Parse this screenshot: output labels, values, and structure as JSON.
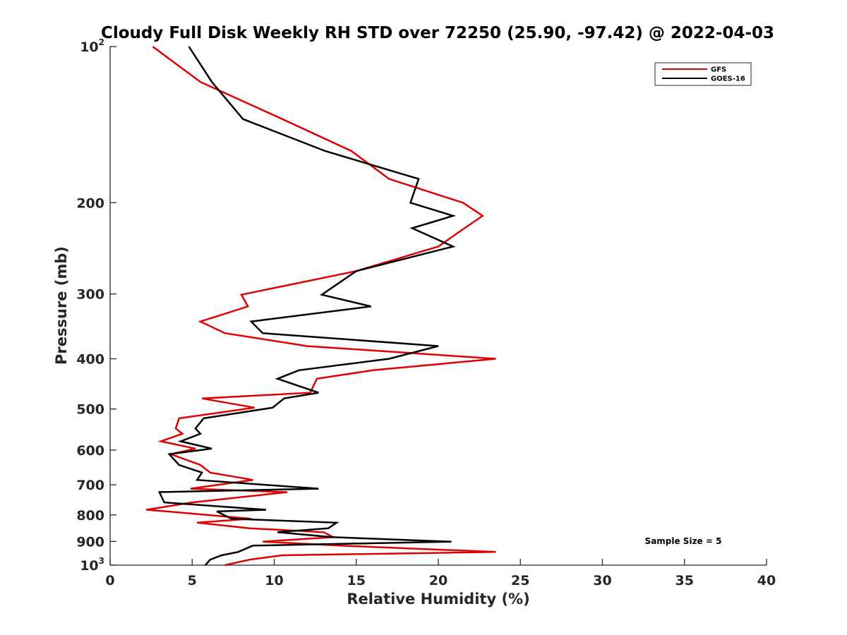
{
  "chart_data": {
    "type": "line",
    "title": "Cloudy Full Disk Weekly RH STD over 72250 (25.90, -97.42) @ 2022-04-03",
    "xlabel": "Relative Humidity (%)",
    "ylabel": "Pressure (mb)",
    "xlim": [
      0,
      40
    ],
    "ylim": [
      100,
      1000
    ],
    "y_scale": "log",
    "y_reversed": true,
    "grid": false,
    "x_ticks": [
      0,
      5,
      10,
      15,
      20,
      25,
      30,
      35,
      40
    ],
    "x_tick_labels": [
      "0",
      "5",
      "10",
      "15",
      "20",
      "25",
      "30",
      "35",
      "40"
    ],
    "y_ticks": [
      100,
      200,
      300,
      400,
      500,
      600,
      700,
      800,
      900,
      1000
    ],
    "y_tick_labels": [
      "10^2",
      "200",
      "300",
      "400",
      "500",
      "600",
      "700",
      "800",
      "900",
      "10^3"
    ],
    "legend_position": "top-right",
    "annotation": "Sample Size = 5",
    "series": [
      {
        "name": "GFS",
        "color": "#e00000",
        "points": [
          [
            2.6,
            100
          ],
          [
            5.5,
            117
          ],
          [
            10.5,
            138
          ],
          [
            14.7,
            159
          ],
          [
            17.0,
            180
          ],
          [
            21.5,
            200
          ],
          [
            22.7,
            212
          ],
          [
            21.6,
            224
          ],
          [
            20.0,
            243
          ],
          [
            15.0,
            271
          ],
          [
            8.0,
            301
          ],
          [
            8.4,
            317
          ],
          [
            5.5,
            339
          ],
          [
            7.0,
            357
          ],
          [
            12.0,
            378
          ],
          [
            23.5,
            400
          ],
          [
            16.0,
            421
          ],
          [
            12.6,
            437
          ],
          [
            12.2,
            465
          ],
          [
            5.6,
            477
          ],
          [
            8.8,
            497
          ],
          [
            4.2,
            521
          ],
          [
            4.0,
            545
          ],
          [
            4.4,
            558
          ],
          [
            3.1,
            577
          ],
          [
            5.2,
            596
          ],
          [
            3.7,
            611
          ],
          [
            5.5,
            641
          ],
          [
            6.1,
            663
          ],
          [
            8.7,
            685
          ],
          [
            4.9,
            712
          ],
          [
            10.8,
            723
          ],
          [
            5.0,
            757
          ],
          [
            2.2,
            782
          ],
          [
            3.5,
            788
          ],
          [
            8.6,
            814
          ],
          [
            5.3,
            828
          ],
          [
            8.5,
            849
          ],
          [
            13.0,
            864
          ],
          [
            13.6,
            883
          ],
          [
            9.3,
            901
          ],
          [
            14.0,
            917
          ],
          [
            23.5,
            943
          ],
          [
            10.5,
            957
          ],
          [
            8.5,
            976
          ],
          [
            7.0,
            1000
          ]
        ]
      },
      {
        "name": "GOES-16",
        "color": "#000000",
        "points": [
          [
            4.8,
            100
          ],
          [
            6.2,
            117
          ],
          [
            8.1,
            138
          ],
          [
            13.1,
            159
          ],
          [
            18.8,
            180
          ],
          [
            18.3,
            200
          ],
          [
            20.9,
            212
          ],
          [
            18.4,
            224
          ],
          [
            20.9,
            243
          ],
          [
            15.0,
            271
          ],
          [
            12.9,
            301
          ],
          [
            15.9,
            317
          ],
          [
            8.6,
            339
          ],
          [
            9.3,
            357
          ],
          [
            20.0,
            378
          ],
          [
            17.0,
            400
          ],
          [
            11.5,
            421
          ],
          [
            10.2,
            437
          ],
          [
            12.7,
            465
          ],
          [
            10.6,
            477
          ],
          [
            9.9,
            497
          ],
          [
            5.7,
            521
          ],
          [
            5.2,
            545
          ],
          [
            5.5,
            558
          ],
          [
            4.3,
            577
          ],
          [
            6.2,
            596
          ],
          [
            3.6,
            611
          ],
          [
            4.2,
            641
          ],
          [
            5.6,
            663
          ],
          [
            5.3,
            685
          ],
          [
            12.7,
            712
          ],
          [
            3.0,
            723
          ],
          [
            3.3,
            757
          ],
          [
            9.5,
            782
          ],
          [
            6.5,
            788
          ],
          [
            7.4,
            814
          ],
          [
            13.8,
            828
          ],
          [
            13.3,
            849
          ],
          [
            10.2,
            864
          ],
          [
            13.5,
            883
          ],
          [
            20.8,
            901
          ],
          [
            8.7,
            917
          ],
          [
            7.8,
            943
          ],
          [
            6.8,
            957
          ],
          [
            6.1,
            976
          ],
          [
            5.8,
            1000
          ]
        ]
      }
    ]
  }
}
